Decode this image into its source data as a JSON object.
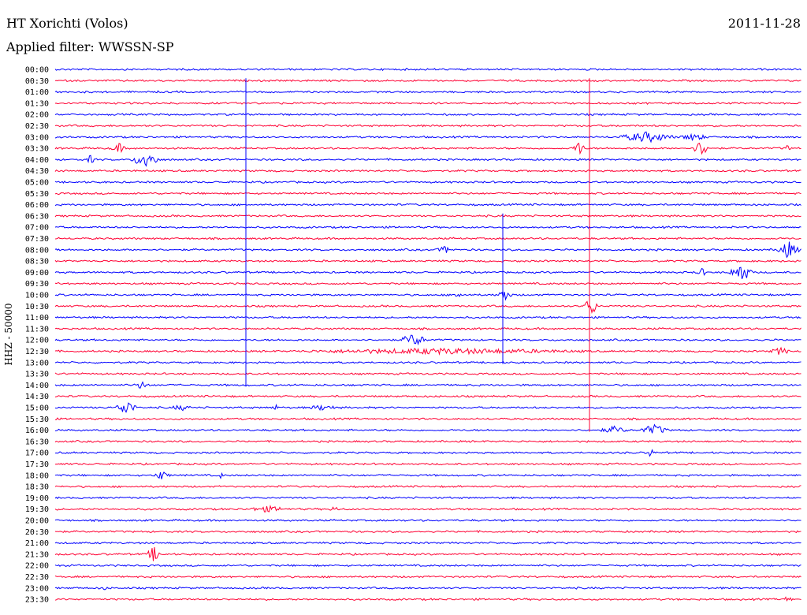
{
  "header": {
    "station": "HT Xorichti (Volos)",
    "date": "2011-11-28",
    "filter": "Applied filter: WWSSN-SP"
  },
  "chart_data": {
    "type": "line",
    "subtype": "helicorder",
    "ylabel": "HHZ - 50000",
    "row_interval_minutes": 30,
    "colors": {
      "even": "#0000ff",
      "odd": "#ff0033"
    },
    "rows": [
      {
        "label": "00:00"
      },
      {
        "label": "00:30"
      },
      {
        "label": "01:00"
      },
      {
        "label": "01:30"
      },
      {
        "label": "02:00"
      },
      {
        "label": "02:30"
      },
      {
        "label": "03:00"
      },
      {
        "label": "03:30"
      },
      {
        "label": "04:00"
      },
      {
        "label": "04:30"
      },
      {
        "label": "05:00"
      },
      {
        "label": "05:30"
      },
      {
        "label": "06:00"
      },
      {
        "label": "06:30"
      },
      {
        "label": "07:00"
      },
      {
        "label": "07:30"
      },
      {
        "label": "08:00"
      },
      {
        "label": "08:30"
      },
      {
        "label": "09:00"
      },
      {
        "label": "09:30"
      },
      {
        "label": "10:00"
      },
      {
        "label": "10:30"
      },
      {
        "label": "11:00"
      },
      {
        "label": "11:30"
      },
      {
        "label": "12:00"
      },
      {
        "label": "12:30"
      },
      {
        "label": "13:00"
      },
      {
        "label": "13:30"
      },
      {
        "label": "14:00"
      },
      {
        "label": "14:30"
      },
      {
        "label": "15:00"
      },
      {
        "label": "15:30"
      },
      {
        "label": "16:00"
      },
      {
        "label": "16:30"
      },
      {
        "label": "17:00"
      },
      {
        "label": "17:30"
      },
      {
        "label": "18:00"
      },
      {
        "label": "18:30"
      },
      {
        "label": "19:00"
      },
      {
        "label": "19:30"
      },
      {
        "label": "20:00"
      },
      {
        "label": "20:30"
      },
      {
        "label": "21:00"
      },
      {
        "label": "21:30"
      },
      {
        "label": "22:00"
      },
      {
        "label": "22:30"
      },
      {
        "label": "23:00"
      },
      {
        "label": "23:30"
      }
    ]
  }
}
